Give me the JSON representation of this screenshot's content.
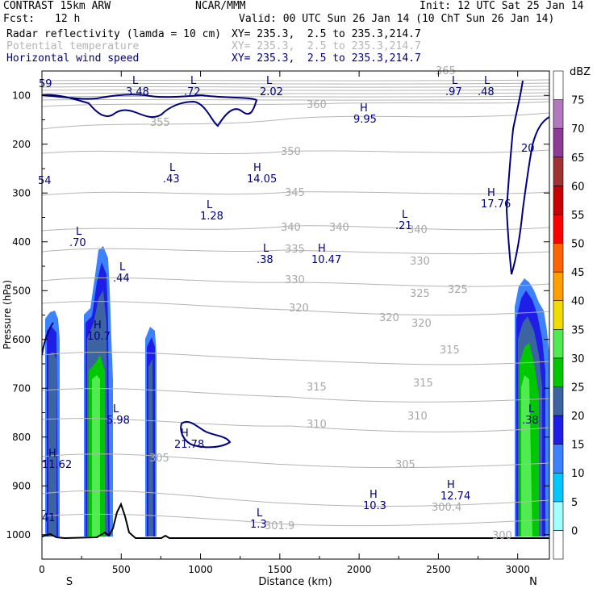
{
  "header": {
    "model": "CONTRAST 15km ARW",
    "center": "NCAR/MMM",
    "init": "Init: 12 UTC Sat 25 Jan 14",
    "fcst_label": "Fcst:",
    "fcst_value": "12 h",
    "valid": "Valid: 00 UTC Sun 26 Jan 14 (10 ChT Sun 26 Jan 14)",
    "fields": [
      {
        "name": "Radar reflectivity (lamda = 10 cm)",
        "xy": "XY= 235.3,  2.5 to 235.3,214.7",
        "color": "#000000"
      },
      {
        "name": "Potential temperature",
        "xy": "XY= 235.3,  2.5 to 235.3,214.7",
        "color": "#b4b4b4"
      },
      {
        "name": "Horizontal wind speed",
        "xy": "XY= 235.3,  2.5 to 235.3,214.7",
        "color": "#00007f"
      }
    ]
  },
  "chart_data": {
    "type": "cross-section",
    "xlabel": "Distance (km)",
    "ylabel": "Pressure (hPa)",
    "xlim": [
      0,
      3200
    ],
    "ylim": [
      1050,
      50
    ],
    "xticks": [
      0,
      500,
      1000,
      1500,
      2000,
      2500,
      3000
    ],
    "yticks": [
      100,
      200,
      300,
      400,
      500,
      600,
      700,
      800,
      900,
      1000
    ],
    "end_labels": {
      "left": "S",
      "right": "N"
    },
    "colorbar": {
      "unit": "dBZ",
      "levels": [
        0,
        5,
        10,
        15,
        20,
        25,
        30,
        35,
        40,
        45,
        50,
        55,
        60,
        65,
        70,
        75
      ],
      "colors": [
        "#ffffff",
        "#a0ffff",
        "#00c8ff",
        "#3c82ff",
        "#1e1ee6",
        "#3c64a0",
        "#00c800",
        "#50eb50",
        "#f0dc00",
        "#ffa000",
        "#ff6400",
        "#ff0000",
        "#c80000",
        "#a03232",
        "#8c3c96",
        "#b478be",
        "#ffffff"
      ]
    },
    "reflectivity_cells": [
      {
        "x": 60,
        "top_hpa": 560,
        "levels": [
          10,
          15,
          20
        ]
      },
      {
        "x": 370,
        "top_hpa": 420,
        "levels": [
          10,
          15,
          20,
          25,
          30
        ]
      },
      {
        "x": 680,
        "top_hpa": 590,
        "levels": [
          10,
          15,
          20
        ]
      },
      {
        "x": 3060,
        "top_hpa": 480,
        "levels": [
          10,
          15,
          20,
          25,
          30
        ]
      }
    ],
    "theta_contour_labels": [
      "355",
      "360",
      "350",
      "345",
      "340",
      "335",
      "330",
      "325",
      "320",
      "315",
      "310",
      "305",
      "300",
      "365",
      "300.4",
      "301.9"
    ],
    "wind_labels": [
      {
        "type": "L",
        "value": "3.48"
      },
      {
        "type": "L",
        "value": ".72"
      },
      {
        "type": "L",
        "value": "2.02"
      },
      {
        "type": "L",
        "value": ".97"
      },
      {
        "type": "L",
        "value": ".48"
      },
      {
        "type": "H",
        "value": "9.95"
      },
      {
        "type": "L",
        "value": ".43"
      },
      {
        "type": "H",
        "value": "14.05"
      },
      {
        "type": "H",
        "value": "17.76"
      },
      {
        "type": "L",
        "value": "1.28"
      },
      {
        "type": "L",
        "value": ".21"
      },
      {
        "type": "L",
        "value": ".70"
      },
      {
        "type": "L",
        "value": ".38"
      },
      {
        "type": "H",
        "value": "10.47"
      },
      {
        "type": "L",
        "value": ".44"
      },
      {
        "type": "H",
        "value": "10.7"
      },
      {
        "type": "L",
        "value": "5.98"
      },
      {
        "type": "H",
        "value": "21.78"
      },
      {
        "type": "H",
        "value": "11.62"
      },
      {
        "type": "H",
        "value": "10.3"
      },
      {
        "type": "H",
        "value": "12.74"
      },
      {
        "type": "L",
        "value": ".38"
      },
      {
        "type": "L",
        "value": "1.3"
      }
    ],
    "wind_contour_labels": [
      "20",
      "54",
      "59",
      "41"
    ]
  }
}
